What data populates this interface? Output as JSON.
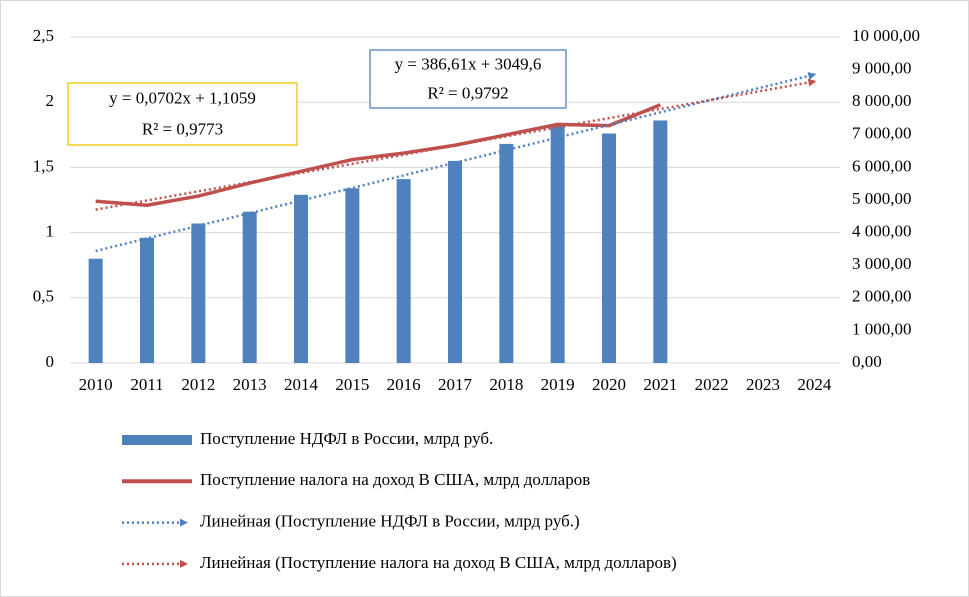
{
  "chart_data": {
    "type": "bar_line",
    "categories": [
      "2010",
      "2011",
      "2012",
      "2013",
      "2014",
      "2015",
      "2016",
      "2017",
      "2018",
      "2019",
      "2020",
      "2021",
      "2022",
      "2023",
      "2024"
    ],
    "series": [
      {
        "name": "Поступление НДФЛ в России, млрд руб.",
        "type": "bar",
        "axis": "y2",
        "color": "#4f81bd",
        "values": [
          3200,
          3840,
          4280,
          4640,
          5160,
          5360,
          5640,
          6200,
          6720,
          7280,
          7040,
          7440,
          null,
          null,
          null
        ]
      },
      {
        "name": "Поступление налога на доход В США, млрд долларов",
        "type": "line",
        "axis": "y",
        "color": "#c0504d",
        "values": [
          1.24,
          1.21,
          1.28,
          1.38,
          1.47,
          1.56,
          1.61,
          1.67,
          1.75,
          1.83,
          1.82,
          1.98,
          null,
          null,
          null
        ]
      },
      {
        "name": "Линейная (Поступление НДФЛ в России, млрд руб.)",
        "type": "trend",
        "axis": "y2",
        "color": "#4f81bd",
        "values": [
          3436.21,
          3822.82,
          4209.43,
          4596.04,
          4982.65,
          5369.26,
          5755.87,
          6142.48,
          6529.09,
          6915.7,
          7302.31,
          7688.92,
          8075.53,
          8462.14,
          8848.75
        ]
      },
      {
        "name": "Линейная (Поступление налога на доход В США, млрд долларов)",
        "type": "trend",
        "axis": "y",
        "color": "#c0504d",
        "values": [
          1.1761,
          1.2463,
          1.3165,
          1.3867,
          1.4569,
          1.5271,
          1.5973,
          1.6675,
          1.7377,
          1.8079,
          1.8781,
          1.9483,
          2.0185,
          2.0887,
          2.1589
        ]
      }
    ],
    "ylim": [
      0,
      2.5
    ],
    "yticks": [
      0,
      {
        "value": 0.5,
        "label": "0,5"
      },
      1,
      {
        "value": 1.5,
        "label": "1,5"
      },
      2,
      {
        "value": 2.5,
        "label": "2,5"
      }
    ],
    "y2lim": [
      0,
      10000
    ],
    "y2ticks": [
      {
        "value": 0,
        "label": "0,00"
      },
      {
        "value": 1000,
        "label": "1 000,00"
      },
      {
        "value": 2000,
        "label": "2 000,00"
      },
      {
        "value": 3000,
        "label": "3 000,00"
      },
      {
        "value": 4000,
        "label": "4 000,00"
      },
      {
        "value": 5000,
        "label": "5 000,00"
      },
      {
        "value": 6000,
        "label": "6 000,00"
      },
      {
        "value": 7000,
        "label": "7 000,00"
      },
      {
        "value": 8000,
        "label": "8 000,00"
      },
      {
        "value": 9000,
        "label": "9 000,00"
      },
      {
        "value": 10000,
        "label": "10 000,00"
      }
    ],
    "grid": true,
    "legend": "bottom",
    "annotations": [
      {
        "lines": [
          "y = 0,0702x + 1,1059",
          "R² = 0,9773"
        ],
        "border": "#f2c200"
      },
      {
        "lines": [
          "y = 386,61x + 3049,6",
          "R² = 0,9792"
        ],
        "border": "#4f81bd"
      }
    ]
  }
}
